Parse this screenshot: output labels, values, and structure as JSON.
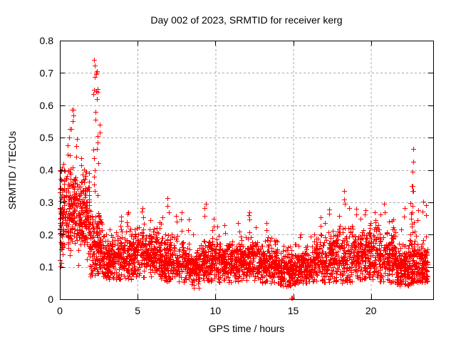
{
  "chart_data": {
    "type": "scatter",
    "title": "Day 002 of 2023, SRMTID for receiver kerg",
    "xlabel": "GPS time / hours",
    "ylabel": "SRMTID / TECUs",
    "xlim": [
      0,
      24
    ],
    "ylim": [
      0,
      0.8
    ],
    "xtick_values": [
      0,
      5,
      10,
      15,
      20
    ],
    "xtick_labels": [
      "0",
      "5",
      "10",
      "15",
      "20"
    ],
    "ytick_values": [
      0,
      0.1,
      0.2,
      0.3,
      0.4,
      0.5,
      0.6,
      0.7,
      0.8
    ],
    "ytick_labels": [
      "0",
      "0.1",
      "0.2",
      "0.3",
      "0.4",
      "0.5",
      "0.6",
      "0.7",
      "0.8"
    ],
    "grid": true,
    "grid_style": "dashed",
    "legend": null,
    "marker": {
      "shape": "plus",
      "size": 7,
      "color": "#ff0000",
      "stroke_width": 1
    },
    "colors": {
      "axis": "#000000",
      "grid": "#a8a8a8",
      "background": "#ffffff",
      "series": "#ff0000"
    },
    "seed": 20230102,
    "scatter_model": {
      "comment": "dense SRMTID scatter: [t0,t1,n,mean,sd,lo,hi] baseline band segments; bursts=[t,dt,[values]] vertical excursion columns; points=exact outliers",
      "segments": [
        [
          0.0,
          0.3,
          60,
          0.27,
          0.07,
          0.1,
          0.42
        ],
        [
          0.3,
          1.0,
          130,
          0.28,
          0.06,
          0.13,
          0.47
        ],
        [
          1.0,
          1.9,
          170,
          0.26,
          0.06,
          0.1,
          0.4
        ],
        [
          1.9,
          2.7,
          150,
          0.17,
          0.05,
          0.07,
          0.33
        ],
        [
          2.7,
          3.5,
          130,
          0.125,
          0.035,
          0.06,
          0.22
        ],
        [
          3.5,
          5.0,
          220,
          0.135,
          0.035,
          0.06,
          0.23
        ],
        [
          5.0,
          6.5,
          220,
          0.14,
          0.035,
          0.06,
          0.24
        ],
        [
          6.5,
          8.0,
          220,
          0.125,
          0.035,
          0.05,
          0.22
        ],
        [
          8.0,
          9.0,
          150,
          0.105,
          0.03,
          0.03,
          0.19
        ],
        [
          9.0,
          10.3,
          190,
          0.12,
          0.035,
          0.05,
          0.22
        ],
        [
          10.3,
          11.5,
          170,
          0.115,
          0.03,
          0.05,
          0.2
        ],
        [
          11.5,
          12.7,
          170,
          0.12,
          0.035,
          0.05,
          0.21
        ],
        [
          12.7,
          14.0,
          190,
          0.11,
          0.033,
          0.04,
          0.2
        ],
        [
          14.0,
          15.2,
          160,
          0.095,
          0.03,
          0.04,
          0.17
        ],
        [
          15.2,
          16.3,
          150,
          0.1,
          0.03,
          0.05,
          0.18
        ],
        [
          16.3,
          17.5,
          170,
          0.125,
          0.04,
          0.05,
          0.22
        ],
        [
          17.5,
          19.0,
          210,
          0.135,
          0.045,
          0.05,
          0.25
        ],
        [
          19.0,
          20.5,
          210,
          0.14,
          0.045,
          0.06,
          0.26
        ],
        [
          20.5,
          21.6,
          160,
          0.135,
          0.045,
          0.05,
          0.25
        ],
        [
          21.6,
          22.45,
          140,
          0.1,
          0.035,
          0.04,
          0.2
        ],
        [
          22.45,
          23.0,
          90,
          0.12,
          0.04,
          0.05,
          0.22
        ],
        [
          23.0,
          23.65,
          110,
          0.105,
          0.035,
          0.05,
          0.2
        ]
      ],
      "bursts": [
        [
          0.03,
          0.05,
          [
            0.4,
            0.37,
            0.345,
            0.33,
            0.315,
            0.3,
            0.285,
            0.27,
            0.255,
            0.24,
            0.225,
            0.21,
            0.195,
            0.18,
            0.165,
            0.15,
            0.135,
            0.12,
            0.105
          ]
        ],
        [
          0.55,
          0.08,
          [
            0.45,
            0.48,
            0.5,
            0.53
          ]
        ],
        [
          0.8,
          0.07,
          [
            0.52,
            0.55,
            0.565,
            0.585
          ]
        ],
        [
          1.05,
          0.07,
          [
            0.44,
            0.47,
            0.5
          ]
        ],
        [
          1.35,
          0.06,
          [
            0.42,
            0.44
          ]
        ],
        [
          1.6,
          0.05,
          [
            0.4
          ]
        ],
        [
          2.35,
          0.22,
          [
            0.74,
            0.72,
            0.705,
            0.7,
            0.695,
            0.69,
            0.655,
            0.65,
            0.645,
            0.64,
            0.635,
            0.62,
            0.585,
            0.56,
            0.545,
            0.52,
            0.5,
            0.49,
            0.47,
            0.46,
            0.44,
            0.42,
            0.4,
            0.38,
            0.36,
            0.34,
            0.32
          ]
        ],
        [
          3.25,
          0.06,
          [
            0.2,
            0.21
          ]
        ],
        [
          3.9,
          0.07,
          [
            0.22,
            0.24,
            0.25
          ]
        ],
        [
          4.35,
          0.07,
          [
            0.24,
            0.26,
            0.27
          ]
        ],
        [
          4.8,
          0.05,
          [
            0.22
          ]
        ],
        [
          5.35,
          0.07,
          [
            0.25,
            0.27,
            0.28
          ]
        ],
        [
          5.8,
          0.05,
          [
            0.24
          ]
        ],
        [
          6.05,
          0.06,
          [
            0.21,
            0.22
          ]
        ],
        [
          6.55,
          0.06,
          [
            0.23,
            0.25
          ]
        ],
        [
          6.95,
          0.07,
          [
            0.27,
            0.29,
            0.31
          ]
        ],
        [
          7.45,
          0.06,
          [
            0.24,
            0.26
          ]
        ],
        [
          7.85,
          0.06,
          [
            0.25,
            0.27
          ]
        ],
        [
          8.25,
          0.06,
          [
            0.22,
            0.24
          ]
        ],
        [
          8.6,
          0.05,
          [
            0.2
          ]
        ],
        [
          9.35,
          0.07,
          [
            0.26,
            0.28,
            0.3
          ]
        ],
        [
          9.9,
          0.06,
          [
            0.23,
            0.25
          ]
        ],
        [
          10.1,
          0.05,
          [
            0.22
          ]
        ],
        [
          10.6,
          0.06,
          [
            0.21,
            0.23
          ]
        ],
        [
          11.5,
          0.06,
          [
            0.21,
            0.23
          ]
        ],
        [
          12.15,
          0.07,
          [
            0.24,
            0.26,
            0.27
          ]
        ],
        [
          12.6,
          0.05,
          [
            0.22
          ]
        ],
        [
          13.3,
          0.06,
          [
            0.21,
            0.23
          ]
        ],
        [
          13.6,
          0.05,
          [
            0.19
          ]
        ],
        [
          14.4,
          0.05,
          [
            0.17
          ]
        ],
        [
          15.45,
          0.06,
          [
            0.19,
            0.2
          ]
        ],
        [
          16.1,
          0.05,
          [
            0.2
          ]
        ],
        [
          16.8,
          0.06,
          [
            0.23,
            0.25
          ]
        ],
        [
          17.0,
          0.05,
          [
            0.24
          ]
        ],
        [
          17.3,
          0.06,
          [
            0.26,
            0.28
          ]
        ],
        [
          18.0,
          0.05,
          [
            0.26
          ]
        ],
        [
          18.3,
          0.07,
          [
            0.29,
            0.31,
            0.33
          ]
        ],
        [
          18.6,
          0.05,
          [
            0.28
          ]
        ],
        [
          19.0,
          0.06,
          [
            0.26,
            0.28
          ]
        ],
        [
          19.3,
          0.05,
          [
            0.25
          ]
        ],
        [
          19.6,
          0.06,
          [
            0.26,
            0.28
          ]
        ],
        [
          20.0,
          0.05,
          [
            0.24
          ]
        ],
        [
          20.3,
          0.06,
          [
            0.25,
            0.27
          ]
        ],
        [
          20.6,
          0.05,
          [
            0.26
          ]
        ],
        [
          20.9,
          0.06,
          [
            0.27,
            0.29
          ]
        ],
        [
          21.1,
          0.05,
          [
            0.24
          ]
        ],
        [
          21.4,
          0.06,
          [
            0.24,
            0.25
          ]
        ],
        [
          21.9,
          0.05,
          [
            0.22
          ]
        ],
        [
          22.1,
          0.06,
          [
            0.26,
            0.28
          ]
        ],
        [
          22.65,
          0.1,
          [
            0.46,
            0.42,
            0.4,
            0.35,
            0.345,
            0.335,
            0.33,
            0.3,
            0.285,
            0.27,
            0.26,
            0.25,
            0.24,
            0.23,
            0.22,
            0.21
          ]
        ],
        [
          23.0,
          0.06,
          [
            0.25,
            0.27
          ]
        ],
        [
          23.3,
          0.06,
          [
            0.27,
            0.3
          ]
        ],
        [
          23.55,
          0.06,
          [
            0.26,
            0.29
          ]
        ]
      ],
      "points": [
        [
          14.87,
          0.004
        ],
        [
          14.93,
          0.004
        ],
        [
          0.02,
          0.4
        ],
        [
          0.85,
          0.587
        ]
      ]
    }
  }
}
